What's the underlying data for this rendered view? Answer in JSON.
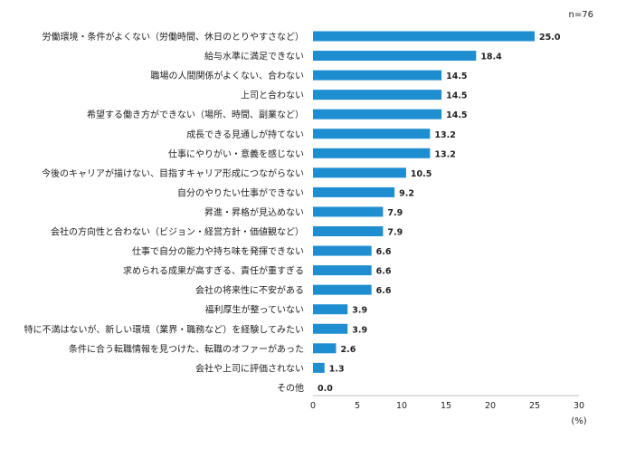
{
  "chart_data": {
    "type": "bar",
    "orientation": "horizontal",
    "note": "n=76",
    "unit_label": "(%)",
    "xlim": [
      0,
      30
    ],
    "xticks": [
      0,
      5,
      10,
      15,
      20,
      25,
      30
    ],
    "grid": false,
    "bar_color": "#1f8ed1",
    "categories": [
      "労働環境・条件がよくない（労働時間、休日のとりやすさなど）",
      "給与水準に満足できない",
      "職場の人間関係がよくない、合わない",
      "上司と合わない",
      "希望する働き方ができない（場所、時間、副業など）",
      "成長できる見通しが持てない",
      "仕事にやりがい・意義を感じない",
      "今後のキャリアが描けない、目指すキャリア形成につながらない",
      "自分のやりたい仕事ができない",
      "昇進・昇格が見込めない",
      "会社の方向性と合わない（ビジョン・経営方針・価値観など）",
      "仕事で自分の能力や持ち味を発揮できない",
      "求められる成果が高すぎる、責任が重すぎる",
      "会社の将来性に不安がある",
      "福利厚生が整っていない",
      "特に不満はないが、新しい環境（業界・職務など）を経験してみたい",
      "条件に合う転職情報を見つけた、転職のオファーがあった",
      "会社や上司に評価されない",
      "その他"
    ],
    "values": [
      25.0,
      18.4,
      14.5,
      14.5,
      14.5,
      13.2,
      13.2,
      10.5,
      9.2,
      7.9,
      7.9,
      6.6,
      6.6,
      6.6,
      3.9,
      3.9,
      2.6,
      1.3,
      0.0
    ]
  }
}
